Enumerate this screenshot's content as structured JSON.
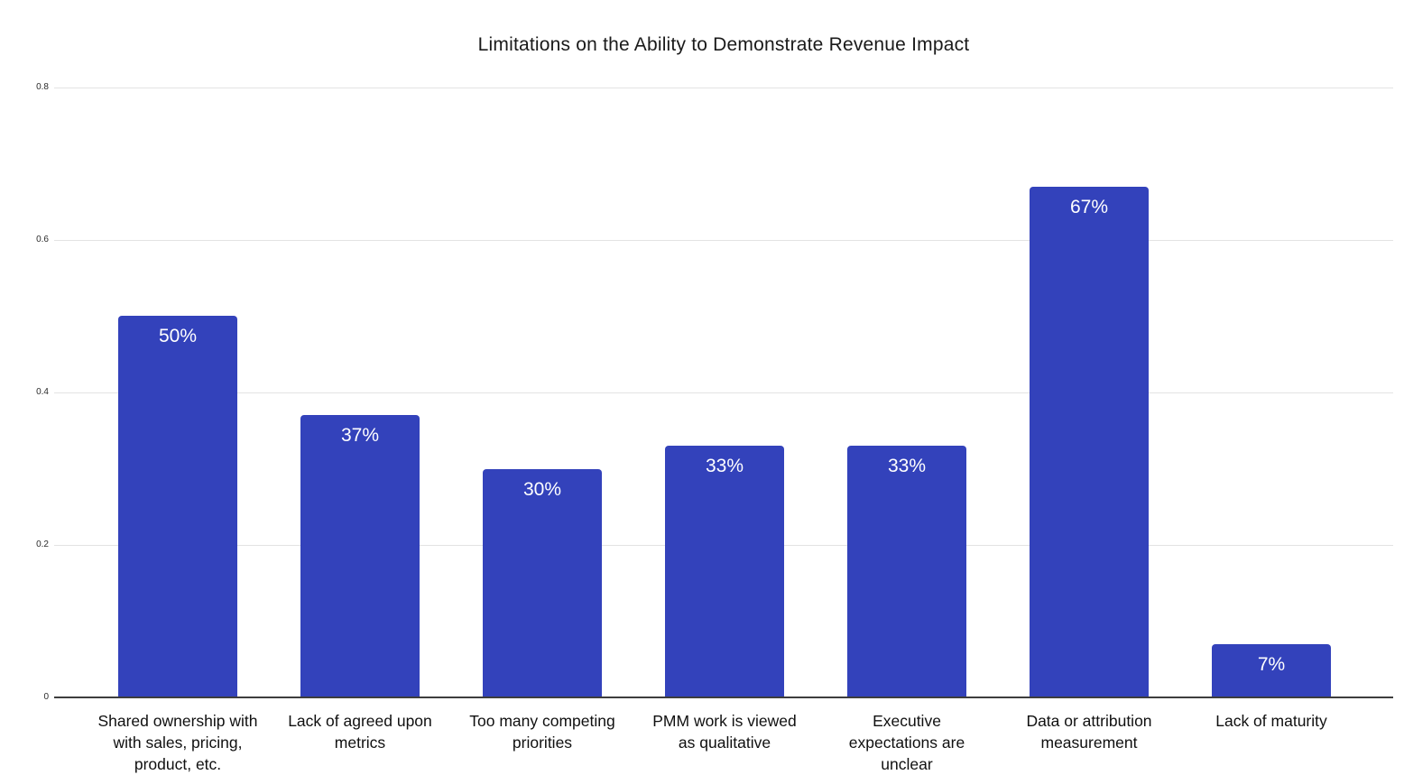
{
  "chart_data": {
    "type": "bar",
    "title": "Limitations on the Ability to Demonstrate Revenue Impact",
    "categories": [
      "Shared ownership with with sales, pricing, product, etc.",
      "Lack of agreed upon metrics",
      "Too many competing priorities",
      "PMM work is viewed as qualitative",
      "Executive expectations are unclear",
      "Data or attribution measurement",
      "Lack of maturity"
    ],
    "values": [
      0.5,
      0.37,
      0.3,
      0.33,
      0.33,
      0.67,
      0.07
    ],
    "bar_labels": [
      "50%",
      "37%",
      "30%",
      "33%",
      "33%",
      "67%",
      "7%"
    ],
    "xlabel": "",
    "ylabel": "",
    "y_ticks": [
      "0",
      "0.2",
      "0.4",
      "0.6",
      "0.8"
    ],
    "y_tick_values": [
      0,
      0.2,
      0.4,
      0.6,
      0.8
    ],
    "ylim": [
      0,
      0.8
    ],
    "grid": "horizontal",
    "legend": "none",
    "bar_color": "#3342bb",
    "bar_label_color": "#ffffff",
    "gridline_color": "#e3e3e3",
    "axis_line_color": "#3d3d3d"
  }
}
